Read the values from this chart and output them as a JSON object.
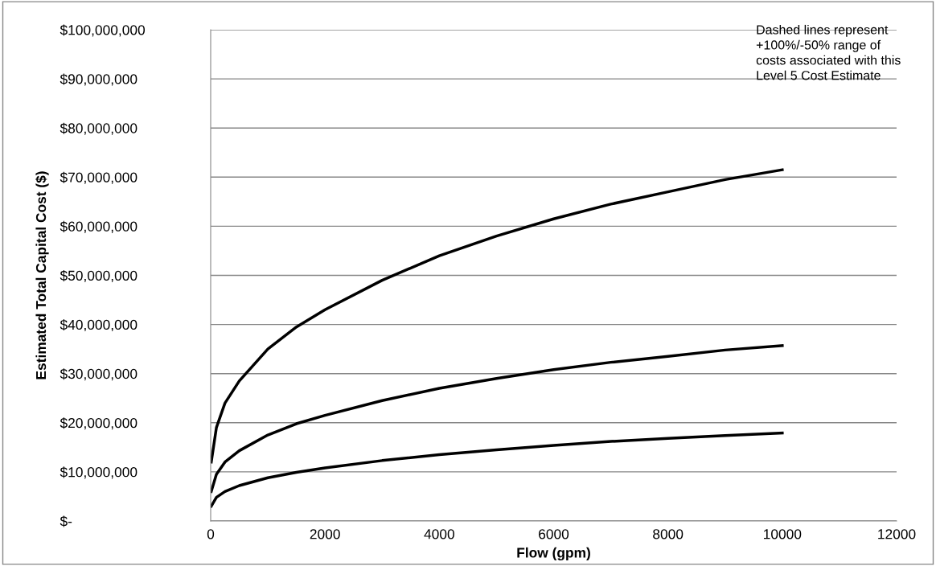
{
  "chart_data": {
    "type": "line",
    "xlabel": "Flow (gpm)",
    "ylabel": "Estimated Total Capital Cost ($)",
    "annotations": [
      "Dashed lines represent\n+100%/-50% range of\ncosts associated with this\nLevel 5 Cost Estimate"
    ],
    "x": [
      10,
      100,
      250,
      500,
      1000,
      1500,
      2000,
      3000,
      4000,
      5000,
      6000,
      7000,
      8000,
      9000,
      10000
    ],
    "series": [
      {
        "color": "#000000",
        "values": [
          12000000,
          19000000,
          24000000,
          28500000,
          35000000,
          39500000,
          43000000,
          49000000,
          54000000,
          58000000,
          61500000,
          64500000,
          67000000,
          69500000,
          71500000
        ]
      },
      {
        "color": "#000000",
        "values": [
          6000000,
          9500000,
          12000000,
          14300000,
          17500000,
          19800000,
          21500000,
          24500000,
          27000000,
          29000000,
          30800000,
          32300000,
          33500000,
          34800000,
          35700000
        ]
      },
      {
        "color": "#000000",
        "values": [
          3000000,
          4800000,
          6000000,
          7200000,
          8800000,
          9900000,
          10800000,
          12300000,
          13500000,
          14500000,
          15400000,
          16200000,
          16800000,
          17400000,
          17900000
        ]
      }
    ],
    "xlim": [
      0,
      12000
    ],
    "xticks": [
      0,
      2000,
      4000,
      6000,
      8000,
      10000,
      12000
    ],
    "ylim": [
      0,
      100000000
    ],
    "yticks": [
      {
        "value": 0,
        "label": "$-"
      },
      {
        "value": 10000000,
        "label": "$10,000,000"
      },
      {
        "value": 20000000,
        "label": "$20,000,000"
      },
      {
        "value": 30000000,
        "label": "$30,000,000"
      },
      {
        "value": 40000000,
        "label": "$40,000,000"
      },
      {
        "value": 50000000,
        "label": "$50,000,000"
      },
      {
        "value": 60000000,
        "label": "$60,000,000"
      },
      {
        "value": 70000000,
        "label": "$70,000,000"
      },
      {
        "value": 80000000,
        "label": "$80,000,000"
      },
      {
        "value": 90000000,
        "label": "$90,000,000"
      },
      {
        "value": 100000000,
        "label": "$100,000,000"
      }
    ],
    "grid": "y",
    "line_style": "solid",
    "marker": "none"
  }
}
